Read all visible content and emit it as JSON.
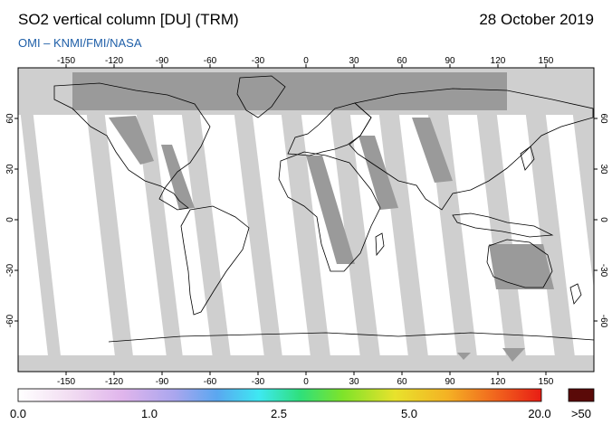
{
  "header": {
    "title": "SO2 vertical column [DU] (TRM)",
    "date": "28 October 2019",
    "credit": "OMI  –  KNMI/FMI/NASA"
  },
  "map": {
    "lon_ticks": [
      "-150",
      "-120",
      "-90",
      "-60",
      "-30",
      "0",
      "30",
      "60",
      "90",
      "120",
      "150"
    ],
    "lat_ticks": [
      "60",
      "30",
      "0",
      "-30",
      "-60"
    ],
    "colors": {
      "nodata": "#cfcfcf",
      "land_nodata": "#9a9a9a",
      "ocean": "#ffffff",
      "coast": "#000000"
    }
  },
  "colorbar": {
    "labels": [
      "0.0",
      "1.0",
      "2.5",
      "5.0",
      "20.0"
    ],
    "overflow_label": ">50",
    "stops": [
      "#ffffff",
      "#f2ddf2",
      "#e0b5ec",
      "#a9a6ee",
      "#5aa7f0",
      "#3ee8f2",
      "#2fe07a",
      "#7ee32a",
      "#e8e22c",
      "#f4b224",
      "#f1671e",
      "#e81d14"
    ],
    "overflow_color": "#5a0a08"
  }
}
